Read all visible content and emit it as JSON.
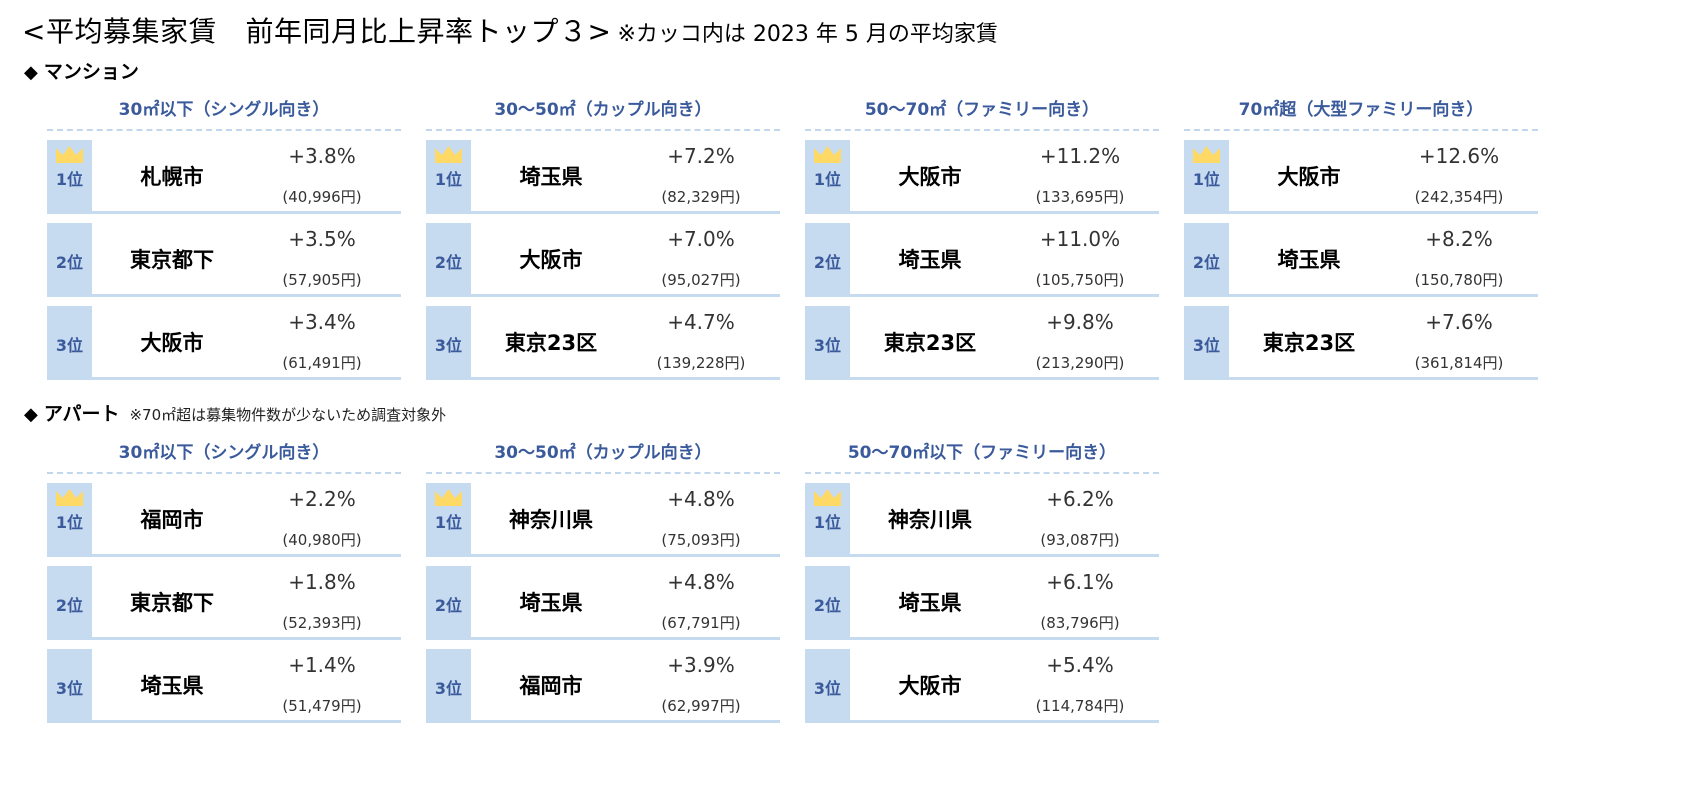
{
  "title": {
    "main": "<平均募集家賃　前年同月比上昇率トップ３>",
    "note": "※カッコ内は 2023 年 5 月の平均家賃"
  },
  "colors": {
    "header_text": "#3a5a9c",
    "rank_bg": "#c6daf0",
    "crown": "#ffd966",
    "divider": "#c6daf0"
  },
  "mansion": {
    "label": "マンション",
    "diamond": "◆",
    "tables": [
      {
        "header": "30㎡以下（シングル向き）",
        "rows": [
          {
            "rank": "1位",
            "city": "札幌市",
            "rate": "+3.8%",
            "rent": "(40,996円)"
          },
          {
            "rank": "2位",
            "city": "東京都下",
            "rate": "+3.5%",
            "rent": "(57,905円)"
          },
          {
            "rank": "3位",
            "city": "大阪市",
            "rate": "+3.4%",
            "rent": "(61,491円)"
          }
        ]
      },
      {
        "header": "30〜50㎡（カップル向き）",
        "rows": [
          {
            "rank": "1位",
            "city": "埼玉県",
            "rate": "+7.2%",
            "rent": "(82,329円)"
          },
          {
            "rank": "2位",
            "city": "大阪市",
            "rate": "+7.0%",
            "rent": "(95,027円)"
          },
          {
            "rank": "3位",
            "city": "東京23区",
            "rate": "+4.7%",
            "rent": "(139,228円)"
          }
        ]
      },
      {
        "header": "50〜70㎡（ファミリー向き）",
        "rows": [
          {
            "rank": "1位",
            "city": "大阪市",
            "rate": "+11.2%",
            "rent": "(133,695円)"
          },
          {
            "rank": "2位",
            "city": "埼玉県",
            "rate": "+11.0%",
            "rent": "(105,750円)"
          },
          {
            "rank": "3位",
            "city": "東京23区",
            "rate": "+9.8%",
            "rent": "(213,290円)"
          }
        ]
      },
      {
        "header": "70㎡超（大型ファミリー向き）",
        "rows": [
          {
            "rank": "1位",
            "city": "大阪市",
            "rate": "+12.6%",
            "rent": "(242,354円)"
          },
          {
            "rank": "2位",
            "city": "埼玉県",
            "rate": "+8.2%",
            "rent": "(150,780円)"
          },
          {
            "rank": "3位",
            "city": "東京23区",
            "rate": "+7.6%",
            "rent": "(361,814円)"
          }
        ]
      }
    ]
  },
  "apartment": {
    "label": "アパート",
    "diamond": "◆",
    "note": "※70㎡超は募集物件数が少ないため調査対象外",
    "tables": [
      {
        "header": "30㎡以下（シングル向き）",
        "rows": [
          {
            "rank": "1位",
            "city": "福岡市",
            "rate": "+2.2%",
            "rent": "(40,980円)"
          },
          {
            "rank": "2位",
            "city": "東京都下",
            "rate": "+1.8%",
            "rent": "(52,393円)"
          },
          {
            "rank": "3位",
            "city": "埼玉県",
            "rate": "+1.4%",
            "rent": "(51,479円)"
          }
        ]
      },
      {
        "header": "30〜50㎡（カップル向き）",
        "rows": [
          {
            "rank": "1位",
            "city": "神奈川県",
            "rate": "+4.8%",
            "rent": "(75,093円)"
          },
          {
            "rank": "2位",
            "city": "埼玉県",
            "rate": "+4.8%",
            "rent": "(67,791円)"
          },
          {
            "rank": "3位",
            "city": "福岡市",
            "rate": "+3.9%",
            "rent": "(62,997円)"
          }
        ]
      },
      {
        "header": "50〜70㎡以下（ファミリー向き）",
        "rows": [
          {
            "rank": "1位",
            "city": "神奈川県",
            "rate": "+6.2%",
            "rent": "(93,087円)"
          },
          {
            "rank": "2位",
            "city": "埼玉県",
            "rate": "+6.1%",
            "rent": "(83,796円)"
          },
          {
            "rank": "3位",
            "city": "大阪市",
            "rate": "+5.4%",
            "rent": "(114,784円)"
          }
        ]
      }
    ]
  }
}
